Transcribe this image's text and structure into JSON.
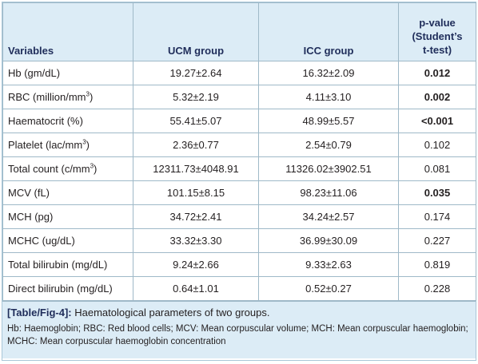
{
  "table": {
    "headers": {
      "variables": "Variables",
      "ucm": "UCM group",
      "icc": "ICC group",
      "pvalue": [
        "p-value",
        "(Student’s",
        "t-test)"
      ]
    },
    "rows": [
      {
        "var": "Hb (gm/dL)",
        "var_sup": "",
        "var_tail": "",
        "ucm": "19.27±2.64",
        "icc": "16.32±2.09",
        "p": "0.012",
        "bold": true
      },
      {
        "var": "RBC (million/mm",
        "var_sup": "3",
        "var_tail": ")",
        "ucm": "5.32±2.19",
        "icc": "4.11±3.10",
        "p": "0.002",
        "bold": true
      },
      {
        "var": "Haematocrit (%)",
        "var_sup": "",
        "var_tail": "",
        "ucm": "55.41±5.07",
        "icc": "48.99±5.57",
        "p": "<0.001",
        "bold": true
      },
      {
        "var": "Platelet (lac/mm",
        "var_sup": "3",
        "var_tail": ")",
        "ucm": "2.36±0.77",
        "icc": "2.54±0.79",
        "p": "0.102",
        "bold": false
      },
      {
        "var": "Total count (c/mm",
        "var_sup": "3",
        "var_tail": ")",
        "ucm": "12311.73±4048.91",
        "icc": "11326.02±3902.51",
        "p": "0.081",
        "bold": false
      },
      {
        "var": "MCV (fL)",
        "var_sup": "",
        "var_tail": "",
        "ucm": "101.15±8.15",
        "icc": "98.23±11.06",
        "p": "0.035",
        "bold": true
      },
      {
        "var": "MCH (pg)",
        "var_sup": "",
        "var_tail": "",
        "ucm": "34.72±2.41",
        "icc": "34.24±2.57",
        "p": "0.174",
        "bold": false
      },
      {
        "var": "MCHC (ug/dL)",
        "var_sup": "",
        "var_tail": "",
        "ucm": "33.32±3.30",
        "icc": "36.99±30.09",
        "p": "0.227",
        "bold": false
      },
      {
        "var": "Total bilirubin (mg/dL)",
        "var_sup": "",
        "var_tail": "",
        "ucm": "9.24±2.66",
        "icc": "9.33±2.63",
        "p": "0.819",
        "bold": false
      },
      {
        "var": "Direct bilirubin (mg/dL)",
        "var_sup": "",
        "var_tail": "",
        "ucm": "0.64±1.01",
        "icc": "0.52±0.27",
        "p": "0.228",
        "bold": false
      }
    ]
  },
  "caption": {
    "label": "[Table/Fig-4]:",
    "title": " Haematological parameters of two groups.",
    "footnote": "Hb: Haemoglobin; RBC: Red blood cells; MCV: Mean corpuscular volume; MCH: Mean corpuscular haemoglobin; MCHC: Mean corpuscular haemoglobin concentration"
  },
  "colors": {
    "header_bg": "#dcecf6",
    "header_text": "#1f2d5a",
    "border": "#9fb9c8"
  }
}
